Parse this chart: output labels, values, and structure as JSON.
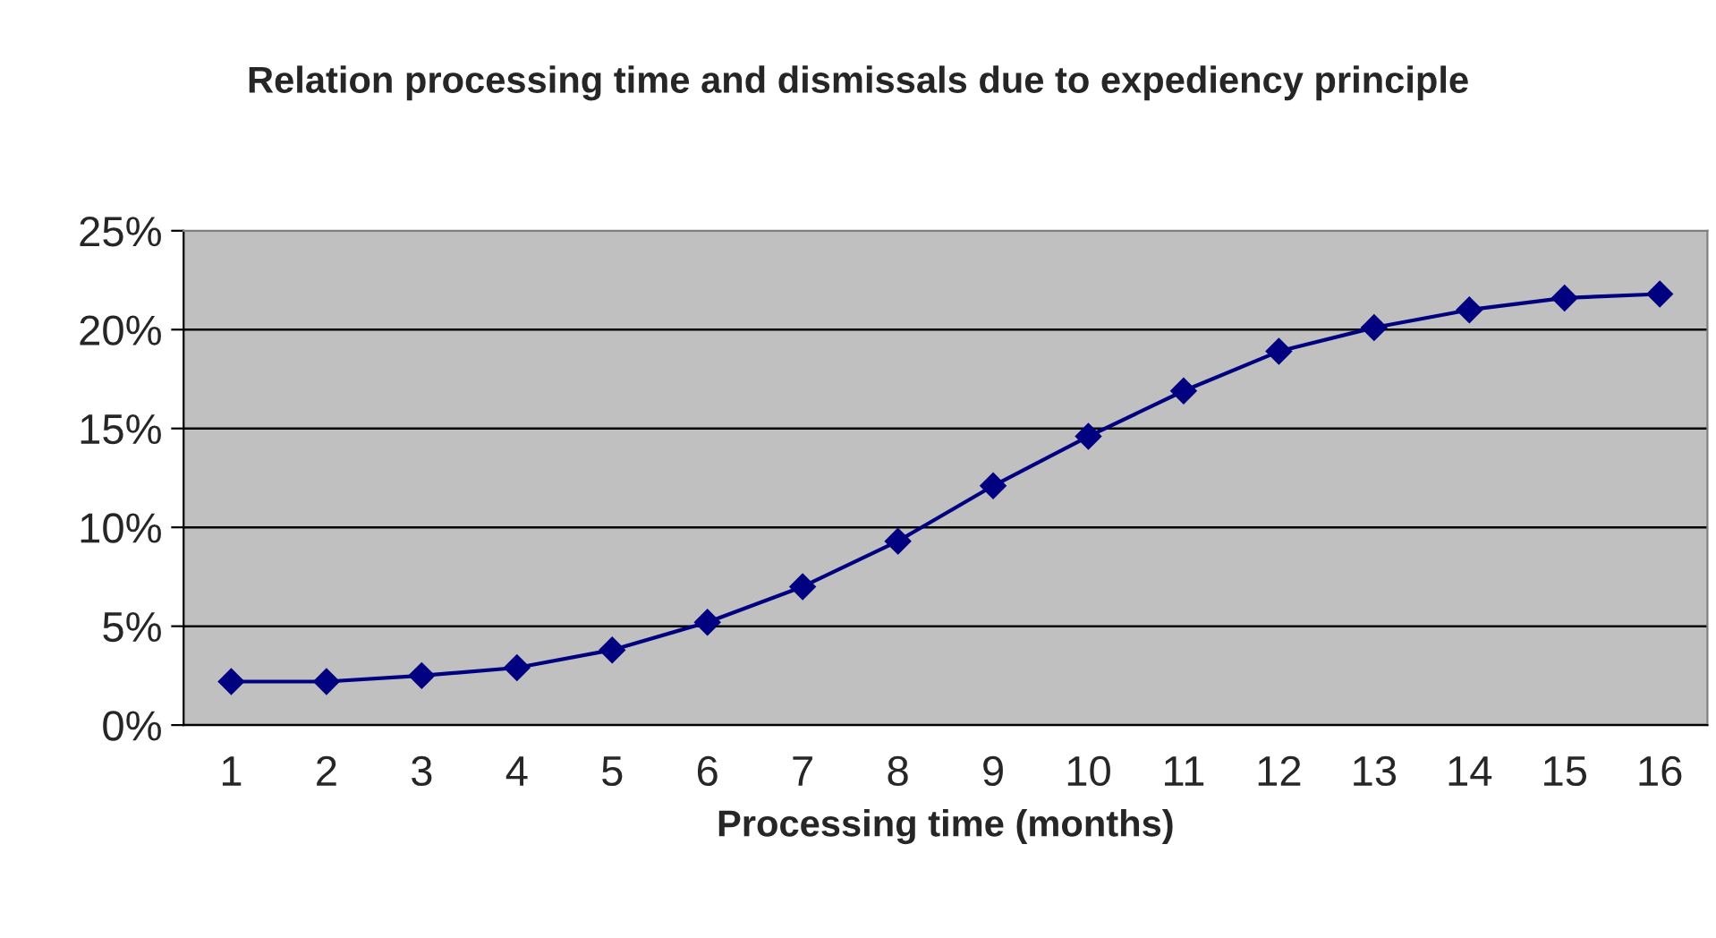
{
  "chart_data": {
    "type": "line",
    "title": "Relation processing time and dismissals due to expediency principle",
    "xlabel": "Processing time (months)",
    "categories": [
      "1",
      "2",
      "3",
      "4",
      "5",
      "6",
      "7",
      "8",
      "9",
      "10",
      "11",
      "12",
      "13",
      "14",
      "15",
      "16"
    ],
    "series": [
      {
        "color": "#000080",
        "values": [
          2.2,
          2.2,
          2.5,
          2.9,
          3.8,
          5.2,
          7.0,
          9.3,
          12.1,
          14.6,
          16.9,
          18.9,
          20.1,
          21.0,
          21.6,
          21.8
        ]
      }
    ],
    "ylim": [
      0,
      25
    ],
    "yticks": [
      {
        "value": 0,
        "label": "0%"
      },
      {
        "value": 5,
        "label": "5%"
      },
      {
        "value": 10,
        "label": "10%"
      },
      {
        "value": 15,
        "label": "15%"
      },
      {
        "value": 20,
        "label": "20%"
      },
      {
        "value": 25,
        "label": "25%"
      }
    ],
    "grid": "y",
    "marker": "diamond",
    "line_style": "solid"
  }
}
